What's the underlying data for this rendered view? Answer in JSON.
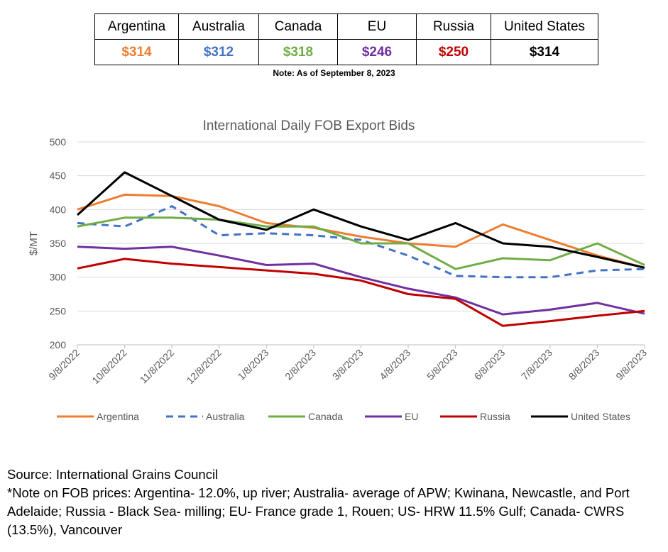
{
  "summary_table": {
    "headers": [
      "Argentina",
      "Australia",
      "Canada",
      "EU",
      "Russia",
      "United States"
    ],
    "values": [
      "$314",
      "$312",
      "$318",
      "$246",
      "$250",
      "$314"
    ],
    "value_colors": [
      "#ED7D31",
      "#4472C4",
      "#70AD47",
      "#7030A0",
      "#C00000",
      "#000000"
    ]
  },
  "note": "Note: As of September 8, 2023",
  "chart_data": {
    "type": "line",
    "title": "International Daily FOB Export Bids",
    "ylabel": "$/MT",
    "xlabel": "",
    "ylim": [
      200,
      500
    ],
    "yticks": [
      200,
      250,
      300,
      350,
      400,
      450,
      500
    ],
    "grid": true,
    "legend_position": "bottom",
    "x": [
      "9/8/2022",
      "10/8/2022",
      "11/8/2022",
      "12/8/2022",
      "1/8/2023",
      "2/8/2023",
      "3/8/2023",
      "4/8/2023",
      "5/8/2023",
      "6/8/2023",
      "7/8/2023",
      "8/8/2023",
      "9/8/2023"
    ],
    "series": [
      {
        "name": "Argentina",
        "color": "#ED7D31",
        "dash": "none",
        "values": [
          400,
          422,
          420,
          405,
          380,
          373,
          360,
          350,
          345,
          378,
          355,
          332,
          314
        ]
      },
      {
        "name": "Australia",
        "color": "#4472C4",
        "dash": "dashed",
        "values": [
          380,
          375,
          405,
          362,
          365,
          362,
          355,
          332,
          302,
          300,
          300,
          310,
          312
        ]
      },
      {
        "name": "Canada",
        "color": "#70AD47",
        "dash": "none",
        "values": [
          375,
          388,
          388,
          385,
          375,
          375,
          350,
          350,
          312,
          328,
          325,
          350,
          318
        ]
      },
      {
        "name": "EU",
        "color": "#7030A0",
        "dash": "none",
        "values": [
          345,
          342,
          345,
          332,
          318,
          320,
          300,
          283,
          270,
          245,
          252,
          262,
          246
        ]
      },
      {
        "name": "Russia",
        "color": "#C00000",
        "dash": "none",
        "values": [
          313,
          327,
          320,
          315,
          310,
          305,
          295,
          275,
          268,
          228,
          235,
          243,
          250
        ]
      },
      {
        "name": "United States",
        "color": "#000000",
        "dash": "none",
        "values": [
          392,
          455,
          420,
          385,
          370,
          400,
          375,
          355,
          380,
          350,
          345,
          330,
          314
        ]
      }
    ]
  },
  "footer": {
    "source": "Source: International Grains Council",
    "note": "*Note on FOB prices: Argentina- 12.0%, up river; Australia- average of APW; Kwinana, Newcastle, and Port Adelaide; Russia - Black Sea- milling; EU- France grade 1, Rouen; US- HRW 11.5% Gulf; Canada- CWRS (13.5%), Vancouver"
  }
}
